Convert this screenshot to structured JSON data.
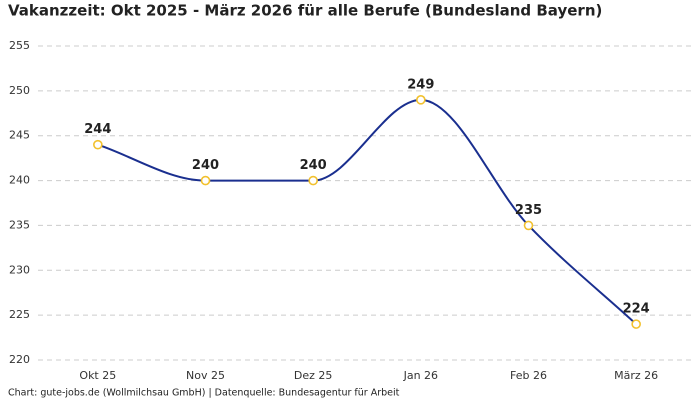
{
  "chart_data": {
    "type": "line",
    "title": "Vakanzzeit: Okt 2025 - März 2026 für alle Berufe (Bundesland Bayern)",
    "footer": "Chart: gute-jobs.de (Wollmilchsau GmbH) | Datenquelle: Bundesagentur für Arbeit",
    "categories": [
      "Okt 25",
      "Nov 25",
      "Dez 25",
      "Jan 26",
      "Feb 26",
      "März 26"
    ],
    "series": [
      {
        "name": "Vakanzzeit",
        "color": "#1a2f8f",
        "marker_color": "#f2c12e",
        "values": [
          244,
          240,
          240,
          249,
          235,
          224
        ]
      }
    ],
    "ylim": [
      220,
      255
    ],
    "yticks": [
      220,
      225,
      230,
      235,
      240,
      245,
      250,
      255
    ],
    "grid": true
  }
}
